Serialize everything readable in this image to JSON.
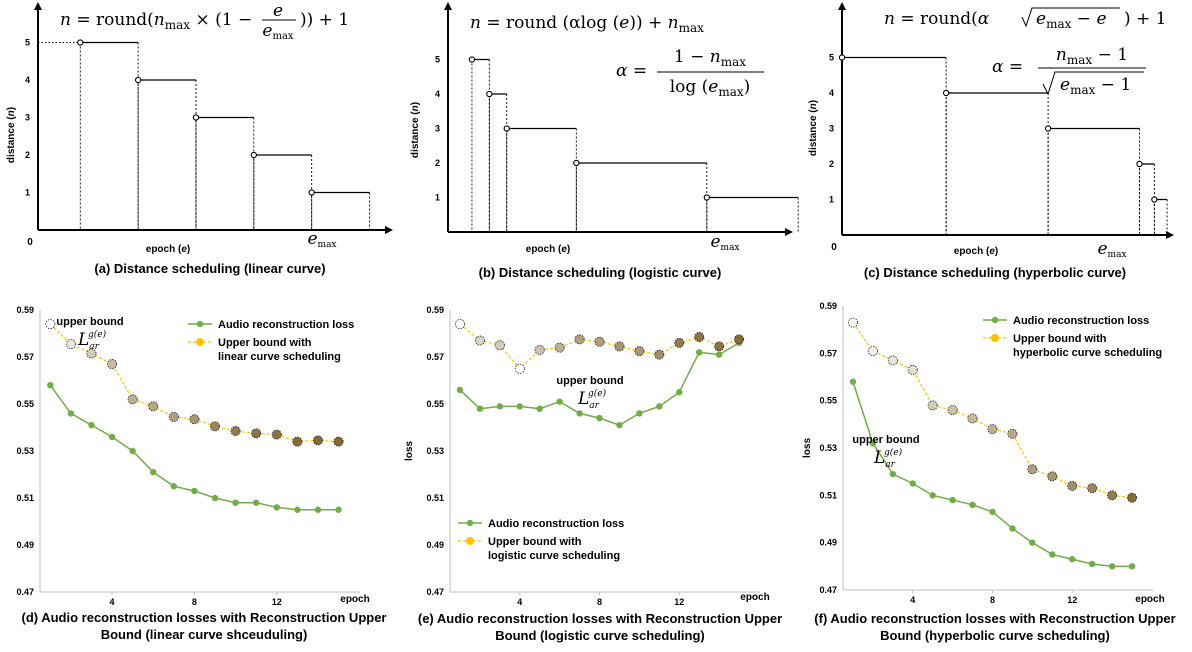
{
  "schedule_panels": [
    {
      "id": "a",
      "caption": "(a) Distance scheduling (linear curve)",
      "formula_main": "n = round(nmax × (1 − e/emax)) + 1",
      "formula_parts": {
        "lhs": "n = round(",
        "n": "n",
        "max": "max",
        "times": " × (1 − ",
        "e": "e",
        "emax_e": "e",
        "emax_sub": "max",
        "tail": ")) + 1"
      },
      "xlabel": "epoch (e)",
      "ylabel": "distance (n)",
      "origin": "0",
      "end_label_e": "e",
      "end_label_sub": "max",
      "yticks": [
        "1",
        "2",
        "3",
        "4",
        "5"
      ],
      "steps": [
        {
          "start": 0.95,
          "end": 2.25,
          "n": 5
        },
        {
          "start": 2.25,
          "end": 3.55,
          "n": 4
        },
        {
          "start": 3.55,
          "end": 4.85,
          "n": 3
        },
        {
          "start": 4.85,
          "end": 6.15,
          "n": 2
        },
        {
          "start": 6.15,
          "end": 7.45,
          "n": 1
        }
      ]
    },
    {
      "id": "b",
      "caption": "(b) Distance scheduling (logistic curve)",
      "formula_main": "n = round (αlog (e)) + nmax",
      "formula_alpha": "α = (1 − nmax) / log (emax)",
      "xlabel": "epoch (e)",
      "ylabel": "distance (n)",
      "yticks": [
        "1",
        "2",
        "3",
        "4",
        "5"
      ],
      "end_label_e": "e",
      "end_label_sub": "max",
      "steps": [
        {
          "start": 0.55,
          "end": 0.95,
          "n": 5
        },
        {
          "start": 0.95,
          "end": 1.35,
          "n": 4
        },
        {
          "start": 1.35,
          "end": 2.95,
          "n": 3
        },
        {
          "start": 2.95,
          "end": 5.95,
          "n": 2
        },
        {
          "start": 5.95,
          "end": 8.05,
          "n": 1
        }
      ]
    },
    {
      "id": "c",
      "caption": "(c) Distance scheduling (hyperbolic curve)",
      "formula_main": "n = round(α√(emax − e)) + 1",
      "formula_alpha": "α = (nmax − 1) / √(emax − 1)",
      "xlabel": "epoch (e)",
      "ylabel": "distance (n)",
      "origin": "0",
      "yticks": [
        "1",
        "2",
        "3",
        "4",
        "5"
      ],
      "end_label_e": "e",
      "end_label_sub": "max",
      "steps": [
        {
          "start": 0.0,
          "end": 2.45,
          "n": 5
        },
        {
          "start": 2.45,
          "end": 4.85,
          "n": 4
        },
        {
          "start": 4.85,
          "end": 7.0,
          "n": 3
        },
        {
          "start": 7.0,
          "end": 7.35,
          "n": 2
        },
        {
          "start": 7.35,
          "end": 7.65,
          "n": 1
        }
      ]
    }
  ],
  "chart_data": [
    {
      "type": "line",
      "id": "d",
      "caption": "(d) Audio reconstruction losses with Reconstruction Upper Bound (linear curve shceuduling)",
      "xlabel": "epoch",
      "ylabel": "",
      "x_ticks": [
        "4",
        "8",
        "12"
      ],
      "y_ticks": [
        "0.47",
        "0.49",
        "0.51",
        "0.53",
        "0.55",
        "0.57",
        "0.59"
      ],
      "ylim": [
        0.47,
        0.59
      ],
      "x": [
        1,
        2,
        3,
        4,
        5,
        6,
        7,
        8,
        9,
        10,
        11,
        12,
        13,
        14,
        15
      ],
      "series": [
        {
          "name": "Audio reconstruction loss",
          "color": "#70ad47",
          "values": [
            0.558,
            0.546,
            0.541,
            0.536,
            0.53,
            0.521,
            0.515,
            0.513,
            0.51,
            0.508,
            0.508,
            0.506,
            0.505,
            0.505,
            0.505
          ]
        },
        {
          "name": "Upper bound with linear curve scheduling",
          "color": "#ffc000",
          "values": [
            0.584,
            0.5755,
            0.5715,
            0.567,
            0.552,
            0.549,
            0.5445,
            0.5435,
            0.5405,
            0.5385,
            0.5375,
            0.537,
            0.534,
            0.5345,
            0.534
          ]
        }
      ],
      "legend_lines": [
        [
          "Audio reconstruction loss"
        ],
        [
          "Upper bound with",
          "linear curve scheduling"
        ]
      ],
      "annotation": "upper bound",
      "math_label": "L",
      "math_sub": "ar",
      "math_sup": "g(e)",
      "marker_fill_fraction": [
        0,
        0.15,
        0.3,
        0.4,
        0.45,
        0.5,
        0.55,
        0.6,
        0.7,
        0.75,
        0.8,
        0.8,
        0.85,
        0.85,
        0.85
      ],
      "legend_placement": "top-right",
      "grid": false
    },
    {
      "type": "line",
      "id": "e",
      "caption": "(e) Audio reconstruction losses with Reconstruction Upper Bound (logistic curve scheduling)",
      "xlabel": "epoch",
      "ylabel": "loss",
      "x_ticks": [
        "4",
        "8",
        "12"
      ],
      "y_ticks": [
        "0.47",
        "0.49",
        "0.51",
        "0.53",
        "0.55",
        "0.57",
        "0.59"
      ],
      "ylim": [
        0.47,
        0.59
      ],
      "x": [
        1,
        2,
        3,
        4,
        5,
        6,
        7,
        8,
        9,
        10,
        11,
        12,
        13,
        14,
        15
      ],
      "series": [
        {
          "name": "Audio reconstruction loss",
          "color": "#70ad47",
          "values": [
            0.556,
            0.548,
            0.549,
            0.549,
            0.548,
            0.551,
            0.546,
            0.544,
            0.541,
            0.546,
            0.549,
            0.555,
            0.572,
            0.571,
            0.576
          ]
        },
        {
          "name": "Upper bound with logistic curve scheduling",
          "color": "#ffc000",
          "values": [
            0.584,
            0.577,
            0.575,
            0.565,
            0.573,
            0.574,
            0.5775,
            0.5765,
            0.5745,
            0.5725,
            0.571,
            0.576,
            0.5785,
            0.5745,
            0.5775
          ]
        }
      ],
      "legend_lines": [
        [
          "Audio reconstruction loss"
        ],
        [
          "Upper bound with",
          "logistic curve scheduling"
        ]
      ],
      "annotation": "upper bound",
      "math_label": "L",
      "math_sub": "ar",
      "math_sup": "g(e)",
      "marker_fill_fraction": [
        0,
        0.25,
        0.3,
        0,
        0.35,
        0.45,
        0.55,
        0.55,
        0.6,
        0.6,
        0.65,
        0.75,
        0.8,
        0.8,
        0.85
      ],
      "legend_placement": "bottom-left",
      "grid": false
    },
    {
      "type": "line",
      "id": "f",
      "caption": "(f) Audio reconstruction losses with Reconstruction Upper Bound (hyperbolic curve scheduling)",
      "xlabel": "epoch",
      "ylabel": "loss",
      "x_ticks": [
        "4",
        "8",
        "12"
      ],
      "y_ticks": [
        "0.47",
        "0.49",
        "0.51",
        "0.53",
        "0.55",
        "0.57",
        "0.59"
      ],
      "ylim": [
        0.47,
        0.59
      ],
      "x": [
        1,
        2,
        3,
        4,
        5,
        6,
        7,
        8,
        9,
        10,
        11,
        12,
        13,
        14,
        15
      ],
      "series": [
        {
          "name": "Audio reconstruction loss",
          "color": "#70ad47",
          "values": [
            0.558,
            0.532,
            0.519,
            0.515,
            0.51,
            0.508,
            0.506,
            0.503,
            0.496,
            0.49,
            0.485,
            0.483,
            0.481,
            0.48,
            0.48
          ]
        },
        {
          "name": "Upper bound with hyperbolic curve scheduling",
          "color": "#ffc000",
          "values": [
            0.583,
            0.571,
            0.567,
            0.563,
            0.548,
            0.546,
            0.5425,
            0.538,
            0.536,
            0.521,
            0.518,
            0.514,
            0.513,
            0.51,
            0.509
          ]
        }
      ],
      "legend_lines": [
        [
          "Audio reconstruction loss"
        ],
        [
          "Upper bound with",
          "hyperbolic curve scheduling"
        ]
      ],
      "annotation": "upper bound",
      "math_label": "L",
      "math_sub": "ar",
      "math_sup": "g(e)",
      "marker_fill_fraction": [
        0,
        0.1,
        0.15,
        0.2,
        0.3,
        0.35,
        0.4,
        0.45,
        0.5,
        0.55,
        0.6,
        0.65,
        0.7,
        0.75,
        0.85
      ],
      "legend_placement": "top-right",
      "grid": false
    }
  ]
}
